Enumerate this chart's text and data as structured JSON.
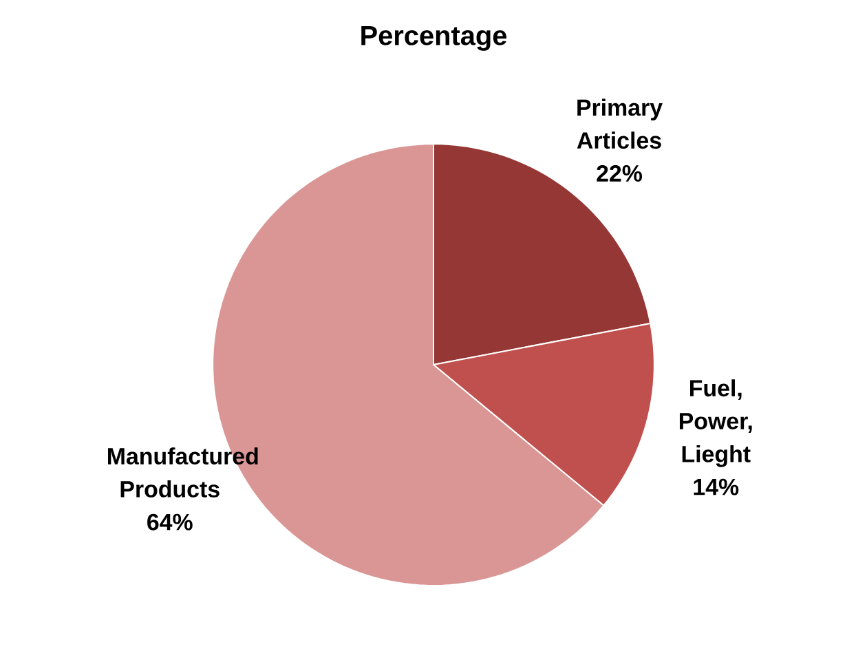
{
  "chart_data": {
    "type": "pie",
    "title": "Percentage",
    "categories": [
      "Primary Articles",
      "Fuel, Power, Lieght",
      "Manufactured Products"
    ],
    "values": [
      22,
      14,
      64
    ],
    "value_labels": [
      "22%",
      "14%",
      "64%"
    ],
    "colors": [
      "#953735",
      "#c0504d",
      "#d99694"
    ]
  }
}
